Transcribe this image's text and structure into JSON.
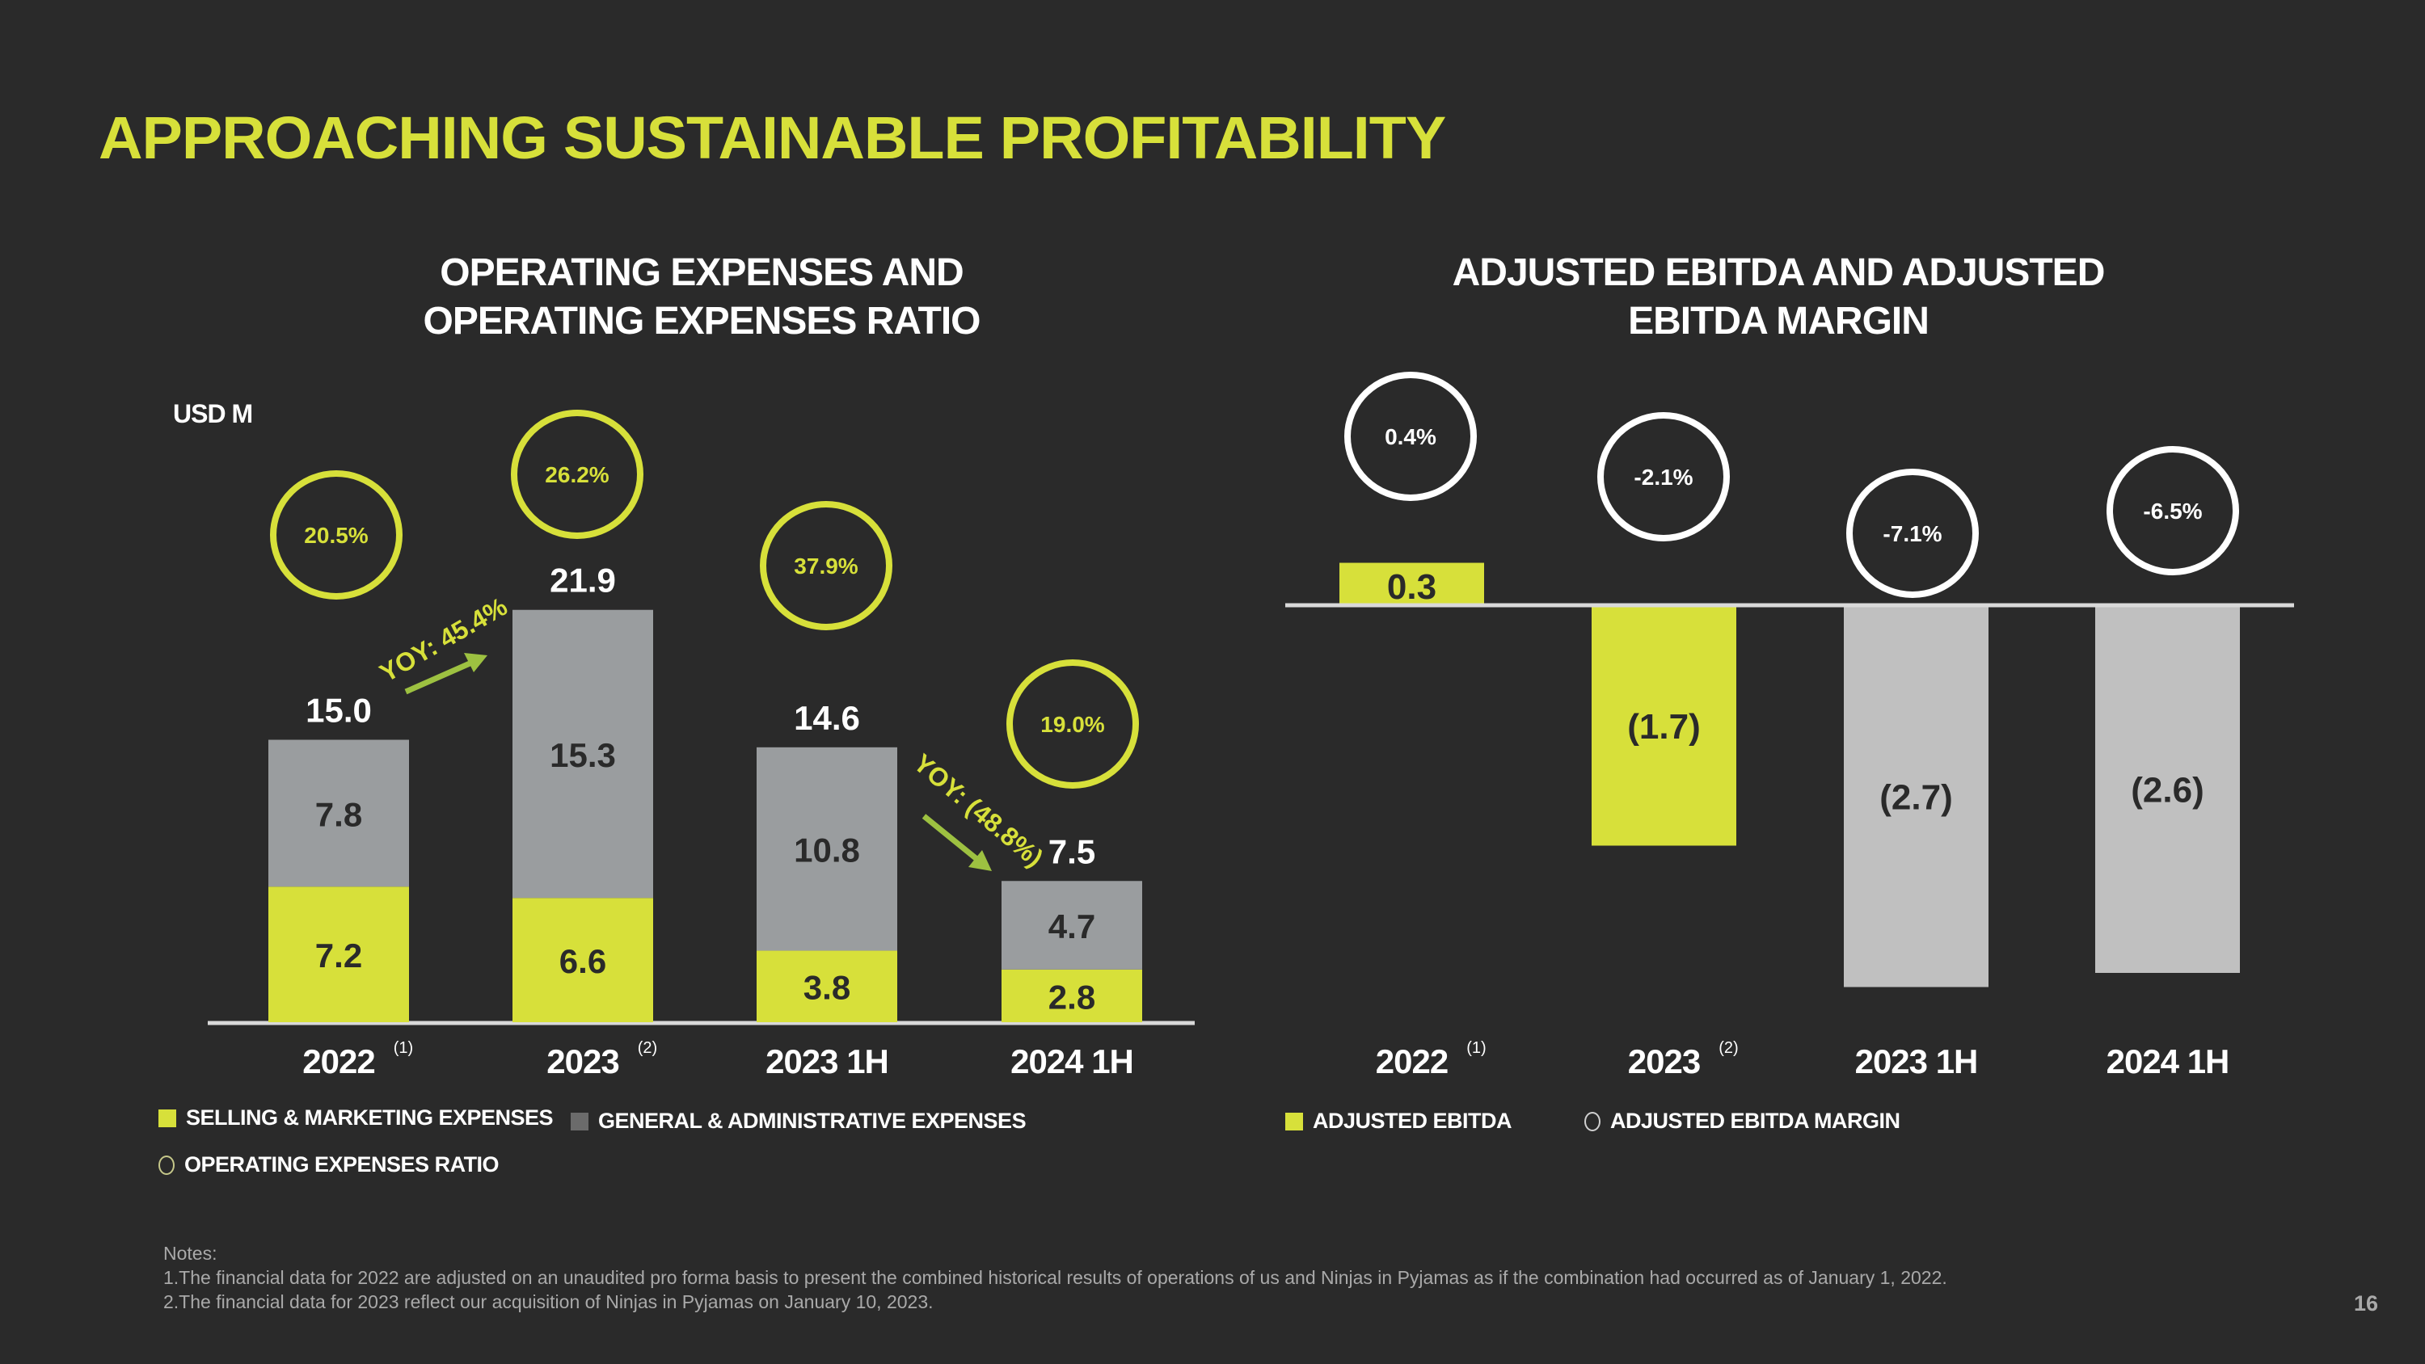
{
  "title": "APPROACHING SUSTAINABLE PROFITABILITY",
  "colors": {
    "background": "#2a2a2a",
    "accent": "#d7e03a",
    "ga_gray": "#9a9d9f",
    "ebitda_negative_gray": "#c0c0c0",
    "arrow_green": "#9dc141",
    "notes_gray": "#a9a9a9"
  },
  "page_number": "16",
  "notes": {
    "heading": "Notes:",
    "items": [
      "1.The financial data for 2022 are adjusted on an unaudited pro forma basis to present the combined historical results of operations of us and Ninjas in Pyjamas as if the combination had occurred as of January 1, 2022.",
      "2.The financial data for 2023 reflect our acquisition of Ninjas in Pyjamas on January 10, 2023."
    ]
  },
  "chart_data": [
    {
      "type": "bar",
      "stacked": true,
      "title": "OPERATING EXPENSES AND OPERATING EXPENSES RATIO",
      "title_lines": [
        "OPERATING EXPENSES AND",
        "OPERATING EXPENSES RATIO"
      ],
      "unit_label": "USD M",
      "categories": [
        "2022",
        "2023",
        "2023 1H",
        "2024 1H"
      ],
      "category_footnotes": [
        "(1)",
        "(2)",
        "",
        ""
      ],
      "series": [
        {
          "name": "SELLING & MARKETING EXPENSES",
          "values": [
            7.2,
            6.6,
            3.8,
            2.8
          ],
          "labels": [
            "7.2",
            "6.6",
            "3.8",
            "2.8"
          ]
        },
        {
          "name": "GENERAL & ADMINISTRATIVE EXPENSES",
          "values": [
            7.8,
            15.3,
            10.8,
            4.7
          ],
          "labels": [
            "7.8",
            "15.3",
            "10.8",
            "4.7"
          ]
        }
      ],
      "totals": [
        15.0,
        21.9,
        14.6,
        7.5
      ],
      "total_labels": [
        "15.0",
        "21.9",
        "14.6",
        "7.5"
      ],
      "ratio_series": {
        "name": "OPERATING EXPENSES RATIO",
        "values": [
          20.5,
          26.2,
          37.9,
          19.0
        ],
        "labels": [
          "20.5%",
          "26.2%",
          "37.9%",
          "19.0%"
        ]
      },
      "annotations": [
        {
          "text": "YOY: 45.4%",
          "from": "2022",
          "to": "2023",
          "direction": "up"
        },
        {
          "text": "YOY: (48.8%)",
          "from": "2023 1H",
          "to": "2024 1H",
          "direction": "down"
        }
      ],
      "legend": [
        {
          "label": "SELLING & MARKETING EXPENSES",
          "marker": "square",
          "color": "#d7e03a"
        },
        {
          "label": "GENERAL & ADMINISTRATIVE EXPENSES",
          "marker": "square",
          "color": "#6b6b6b"
        },
        {
          "label": "OPERATING EXPENSES RATIO",
          "marker": "circle",
          "color": "#c6c88a"
        }
      ],
      "legend_position": "bottom-left",
      "xlabel": "",
      "ylabel": "USD M",
      "ylim": [
        0,
        25
      ],
      "grid": false
    },
    {
      "type": "bar",
      "title": "ADJUSTED EBITDA AND ADJUSTED EBITDA MARGIN",
      "title_lines": [
        "ADJUSTED EBITDA AND ADJUSTED",
        "EBITDA MARGIN"
      ],
      "categories": [
        "2022",
        "2023",
        "2023 1H",
        "2024 1H"
      ],
      "category_footnotes": [
        "(1)",
        "(2)",
        "",
        ""
      ],
      "series": [
        {
          "name": "ADJUSTED EBITDA",
          "values": [
            0.3,
            -1.7,
            -2.7,
            -2.6
          ],
          "labels": [
            "0.3",
            "(1.7)",
            "(2.7)",
            "(2.6)"
          ]
        }
      ],
      "bar_colors": [
        "#d7e03a",
        "#d7e03a",
        "#c0c0c0",
        "#c0c0c0"
      ],
      "margin_series": {
        "name": "ADJUSTED EBITDA MARGIN",
        "values": [
          0.4,
          -2.1,
          -7.1,
          -6.5
        ],
        "labels": [
          "0.4%",
          "-2.1%",
          "-7.1%",
          "-6.5%"
        ]
      },
      "legend": [
        {
          "label": "ADJUSTED EBITDA",
          "marker": "square",
          "color": "#d7e03a"
        },
        {
          "label": "ADJUSTED EBITDA MARGIN",
          "marker": "circle",
          "color": "#d0d0d0"
        }
      ],
      "legend_position": "bottom-left",
      "xlabel": "",
      "ylabel": "USD M",
      "ylim": [
        -3,
        0.5
      ],
      "grid": false
    }
  ]
}
